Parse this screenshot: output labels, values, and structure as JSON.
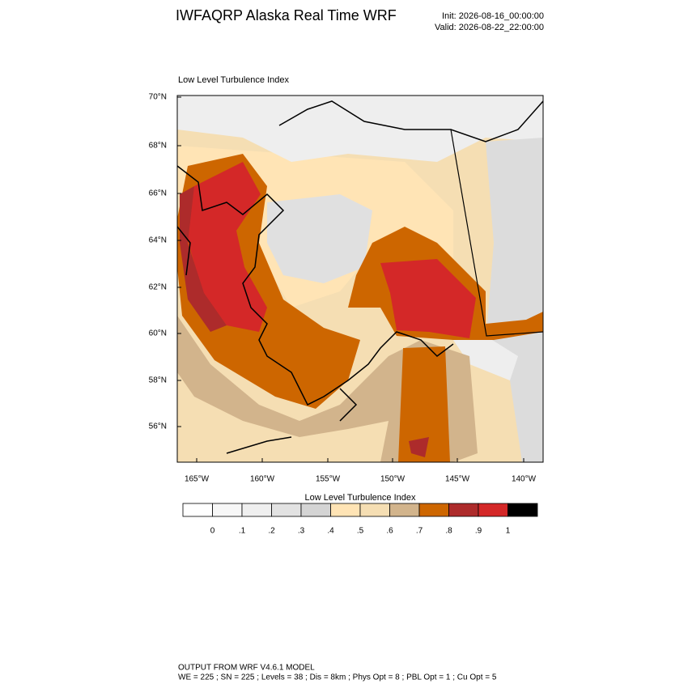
{
  "header": {
    "title": "IWFAQRP Alaska Real Time WRF",
    "init": "Init: 2026-08-16_00:00:00",
    "valid": "Valid: 2026-08-22_22:00:00"
  },
  "map": {
    "title": "Low Level Turbulence Index",
    "lat_labels": [
      "70°N",
      "68°N",
      "66°N",
      "64°N",
      "62°N",
      "60°N",
      "58°N",
      "56°N"
    ],
    "lon_labels": [
      "165°W",
      "160°W",
      "155°W",
      "150°W",
      "145°W",
      "140°W"
    ]
  },
  "colorbar": {
    "title": "Low Level Turbulence Index",
    "colors": [
      "#ffffff",
      "#f7f7f7",
      "#efefef",
      "#e2e2e2",
      "#d4d4d4",
      "#ffe4b5",
      "#f5deb3",
      "#d2b48c",
      "#cd6600",
      "#ad2b2b",
      "#d42828",
      "#000000"
    ],
    "labels": [
      "0",
      ".1",
      ".2",
      ".3",
      ".4",
      ".5",
      ".6",
      ".7",
      ".8",
      ".9",
      "1"
    ]
  },
  "footer": {
    "line1": "OUTPUT FROM WRF V4.6.1 MODEL",
    "line2": "WE = 225 ; SN = 225 ; Levels = 38 ; Dis = 8km ; Phys Opt = 8 ; PBL Opt = 1 ; Cu Opt = 5"
  }
}
